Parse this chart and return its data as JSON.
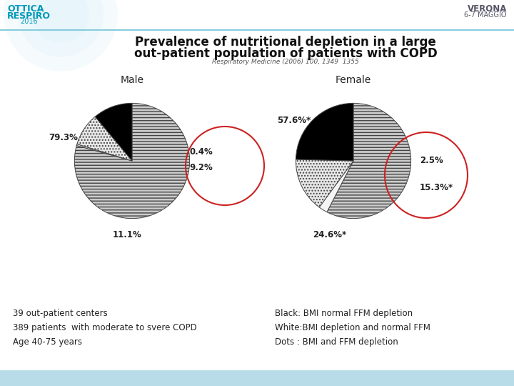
{
  "title_line1": "Prevalence of nutritional depletion in a large",
  "title_line2": "out-patient population of patients with COPD",
  "subtitle": "Respiratory Medicine (2006) 100, 1349  1355",
  "male_label": "Male",
  "female_label": "Female",
  "male_values": [
    79.3,
    11.1,
    9.2,
    0.4
  ],
  "female_values": [
    57.6,
    24.6,
    15.3,
    2.5
  ],
  "male_labels": [
    "79.3%",
    "11.1%",
    "9.2%",
    "0.4%"
  ],
  "female_labels": [
    "57.6%*",
    "24.6%*",
    "15.3%*",
    "2.5%"
  ],
  "facecolors": [
    "#cccccc",
    "#000000",
    "#e8e8e8",
    "#f5f5f5"
  ],
  "hatches": [
    "----",
    "",
    "....",
    ""
  ],
  "bottom_left_text": "39 out-patient centers\n389 patients  with moderate to svere COPD\nAge 40-75 years",
  "bottom_right_text": "Black: BMI normal FFM depletion\nWhite:BMI depletion and normal FFM\nDots : BMI and FFM depletion",
  "circle_color": "#cc2222",
  "header_color": "#cce8f0",
  "top_bar_color": "#cce8f0",
  "ottica_color": "#0099bb",
  "verona_color": "#555566"
}
